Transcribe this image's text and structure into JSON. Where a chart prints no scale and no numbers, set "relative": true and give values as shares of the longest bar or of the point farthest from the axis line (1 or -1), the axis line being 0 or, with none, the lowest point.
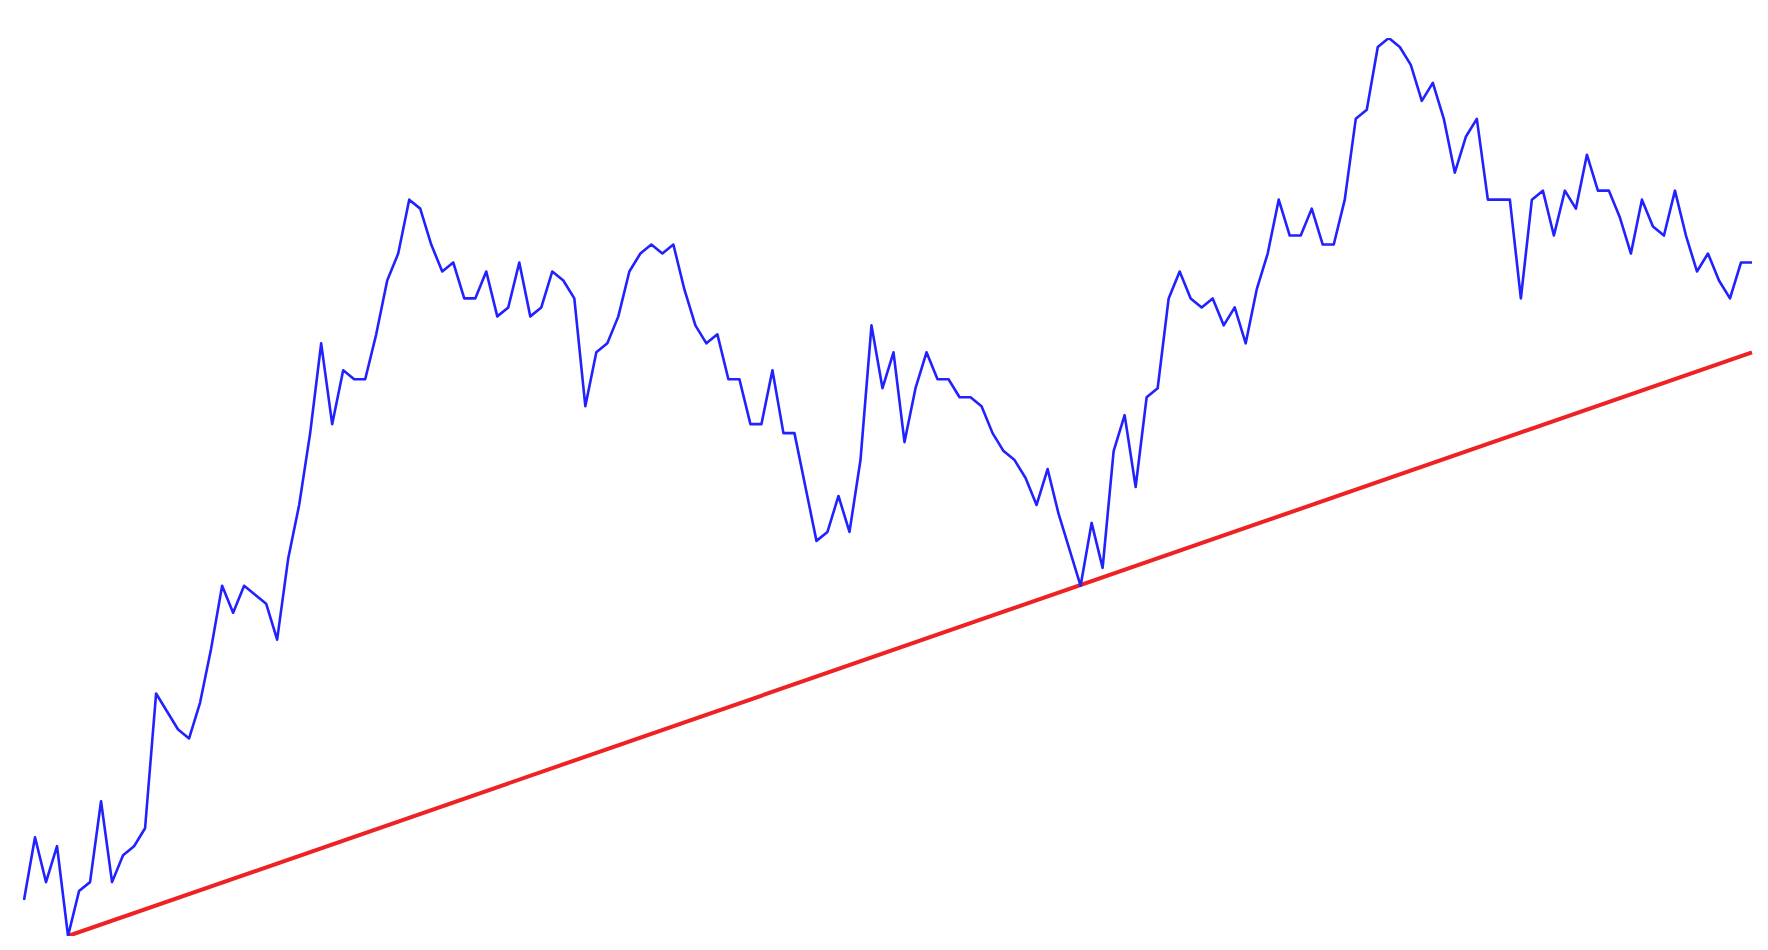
{
  "chart_data": {
    "type": "line",
    "relative": true,
    "categories": [
      null,
      null,
      null,
      null,
      null,
      null,
      null,
      null,
      null,
      null,
      null,
      null,
      null,
      null,
      null,
      null,
      null,
      null,
      null,
      null,
      null,
      null,
      null,
      null,
      null,
      null,
      null,
      null,
      null,
      null,
      null,
      null,
      null,
      null,
      null,
      null,
      null,
      null,
      null,
      null,
      null,
      null,
      null,
      null,
      null,
      null,
      null,
      null,
      null,
      null,
      null,
      null,
      null,
      null,
      null,
      null,
      null,
      null,
      null,
      null,
      null,
      null,
      null,
      null,
      null,
      null,
      null,
      null,
      null,
      null,
      null,
      null,
      null,
      null,
      null,
      null,
      null,
      null,
      null,
      null,
      null,
      null,
      null,
      null,
      null,
      null,
      null,
      null,
      null,
      null,
      null,
      null,
      null,
      null,
      null,
      null,
      null,
      null,
      null,
      null,
      null,
      null,
      null,
      null,
      null,
      null,
      null,
      null,
      null,
      null,
      null,
      null,
      null,
      null,
      null,
      null,
      null,
      null,
      null,
      null,
      null,
      null,
      null,
      null,
      null,
      null,
      null,
      null,
      null,
      null,
      null,
      null,
      null,
      null,
      null,
      null,
      null,
      null,
      null,
      null,
      null,
      null,
      null,
      null,
      null,
      null,
      null,
      null,
      null,
      null,
      null,
      null,
      null,
      null,
      null,
      null,
      null,
      null
    ],
    "series": [
      {
        "color": "#2222ff",
        "values": [
          0.04,
          0.11,
          0.06,
          0.1,
          0,
          0.05,
          0.06,
          0.15,
          0.06,
          0.09,
          0.1,
          0.12,
          0.27,
          0.25,
          0.23,
          0.22,
          0.26,
          0.32,
          0.39,
          0.36,
          0.39,
          0.38,
          0.37,
          0.33,
          0.42,
          0.48,
          0.56,
          0.66,
          0.57,
          0.63,
          0.62,
          0.62,
          0.67,
          0.73,
          0.76,
          0.82,
          0.81,
          0.77,
          0.74,
          0.75,
          0.71,
          0.71,
          0.74,
          0.69,
          0.7,
          0.75,
          0.69,
          0.7,
          0.74,
          0.73,
          0.71,
          0.59,
          0.65,
          0.66,
          0.69,
          0.74,
          0.76,
          0.77,
          0.76,
          0.77,
          0.72,
          0.68,
          0.66,
          0.67,
          0.62,
          0.62,
          0.57,
          0.57,
          0.63,
          0.56,
          0.56,
          0.5,
          0.44,
          0.45,
          0.49,
          0.45,
          0.53,
          0.68,
          0.61,
          0.65,
          0.55,
          0.61,
          0.65,
          0.62,
          0.62,
          0.6,
          0.6,
          0.59,
          0.56,
          0.54,
          0.53,
          0.51,
          0.48,
          0.52,
          0.47,
          0.43,
          0.39,
          0.46,
          0.41,
          0.54,
          0.58,
          0.5,
          0.6,
          0.61,
          0.71,
          0.74,
          0.71,
          0.7,
          0.71,
          0.68,
          0.7,
          0.66,
          0.72,
          0.76,
          0.82,
          0.78,
          0.78,
          0.81,
          0.77,
          0.77,
          0.82,
          0.91,
          0.92,
          0.99,
          1,
          0.99,
          0.97,
          0.93,
          0.95,
          0.91,
          0.85,
          0.89,
          0.91,
          0.82,
          0.82,
          0.82,
          0.71,
          0.82,
          0.83,
          0.78,
          0.83,
          0.81,
          0.87,
          0.83,
          0.83,
          0.8,
          0.76,
          0.82,
          0.79,
          0.78,
          0.83,
          0.78,
          0.74,
          0.76,
          0.73,
          0.71,
          0.75,
          0.75
        ]
      },
      {
        "color": "#ee2222",
        "values": [
          null,
          null,
          null,
          null,
          0,
          null,
          null,
          null,
          null,
          null,
          null,
          null,
          null,
          null,
          null,
          null,
          null,
          null,
          null,
          null,
          null,
          null,
          null,
          null,
          null,
          null,
          null,
          null,
          null,
          null,
          null,
          null,
          null,
          null,
          null,
          null,
          null,
          null,
          null,
          null,
          null,
          null,
          null,
          null,
          null,
          null,
          null,
          null,
          null,
          null,
          null,
          null,
          null,
          null,
          null,
          null,
          null,
          null,
          null,
          null,
          null,
          null,
          null,
          null,
          null,
          null,
          null,
          null,
          null,
          null,
          null,
          null,
          null,
          null,
          null,
          null,
          null,
          null,
          null,
          null,
          null,
          null,
          null,
          null,
          null,
          null,
          null,
          null,
          null,
          null,
          null,
          null,
          null,
          null,
          null,
          null,
          null,
          null,
          null,
          null,
          null,
          null,
          null,
          null,
          null,
          null,
          null,
          null,
          null,
          null,
          null,
          null,
          null,
          null,
          null,
          null,
          null,
          null,
          null,
          null,
          null,
          null,
          null,
          null,
          null,
          null,
          null,
          null,
          null,
          null,
          null,
          null,
          null,
          null,
          null,
          null,
          null,
          null,
          null,
          null,
          null,
          null,
          null,
          null,
          null,
          null,
          null,
          null,
          null,
          null,
          null,
          null,
          null,
          null,
          null,
          null,
          null,
          0.65
        ]
      }
    ]
  }
}
